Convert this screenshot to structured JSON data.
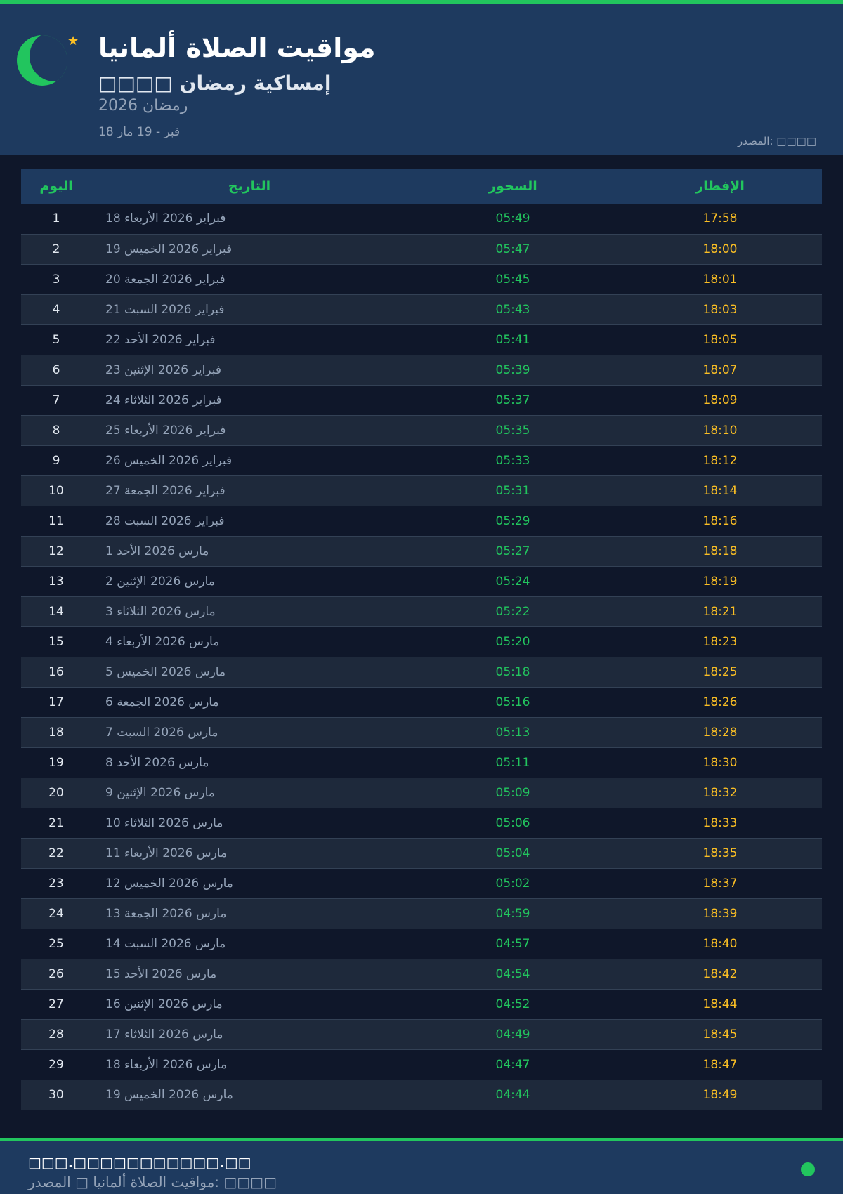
{
  "header": {
    "title": "مواقيت الصلاة ألمانيا",
    "subtitle": "□□□□ إمساكية رمضان",
    "year": "رمضان 2026",
    "range": "18 فبر - 19 مار",
    "source": "المصدر: □□□□"
  },
  "colors": {
    "accent": "#22c55e",
    "iftar": "#fbbf24",
    "header_bg": "#1e3a5f",
    "page_bg": "#0f172a"
  },
  "table": {
    "headers": {
      "day": "اليوم",
      "date": "التاريخ",
      "suhoor": "السحور",
      "iftar": "الإفطار"
    },
    "rows": [
      [
        "1",
        "18 فبراير 2026 الأربعاء",
        "05:49",
        "17:58"
      ],
      [
        "2",
        "19 فبراير 2026 الخميس",
        "05:47",
        "18:00"
      ],
      [
        "3",
        "20 فبراير 2026 الجمعة",
        "05:45",
        "18:01"
      ],
      [
        "4",
        "21 فبراير 2026 السبت",
        "05:43",
        "18:03"
      ],
      [
        "5",
        "22 فبراير 2026 الأحد",
        "05:41",
        "18:05"
      ],
      [
        "6",
        "23 فبراير 2026 الإثنين",
        "05:39",
        "18:07"
      ],
      [
        "7",
        "24 فبراير 2026 الثلاثاء",
        "05:37",
        "18:09"
      ],
      [
        "8",
        "25 فبراير 2026 الأربعاء",
        "05:35",
        "18:10"
      ],
      [
        "9",
        "26 فبراير 2026 الخميس",
        "05:33",
        "18:12"
      ],
      [
        "10",
        "27 فبراير 2026 الجمعة",
        "05:31",
        "18:14"
      ],
      [
        "11",
        "28 فبراير 2026 السبت",
        "05:29",
        "18:16"
      ],
      [
        "12",
        "1 مارس 2026 الأحد",
        "05:27",
        "18:18"
      ],
      [
        "13",
        "2 مارس 2026 الإثنين",
        "05:24",
        "18:19"
      ],
      [
        "14",
        "3 مارس 2026 الثلاثاء",
        "05:22",
        "18:21"
      ],
      [
        "15",
        "4 مارس 2026 الأربعاء",
        "05:20",
        "18:23"
      ],
      [
        "16",
        "5 مارس 2026 الخميس",
        "05:18",
        "18:25"
      ],
      [
        "17",
        "6 مارس 2026 الجمعة",
        "05:16",
        "18:26"
      ],
      [
        "18",
        "7 مارس 2026 السبت",
        "05:13",
        "18:28"
      ],
      [
        "19",
        "8 مارس 2026 الأحد",
        "05:11",
        "18:30"
      ],
      [
        "20",
        "9 مارس 2026 الإثنين",
        "05:09",
        "18:32"
      ],
      [
        "21",
        "10 مارس 2026 الثلاثاء",
        "05:06",
        "18:33"
      ],
      [
        "22",
        "11 مارس 2026 الأربعاء",
        "05:04",
        "18:35"
      ],
      [
        "23",
        "12 مارس 2026 الخميس",
        "05:02",
        "18:37"
      ],
      [
        "24",
        "13 مارس 2026 الجمعة",
        "04:59",
        "18:39"
      ],
      [
        "25",
        "14 مارس 2026 السبت",
        "04:57",
        "18:40"
      ],
      [
        "26",
        "15 مارس 2026 الأحد",
        "04:54",
        "18:42"
      ],
      [
        "27",
        "16 مارس 2026 الإثنين",
        "04:52",
        "18:44"
      ],
      [
        "28",
        "17 مارس 2026 الثلاثاء",
        "04:49",
        "18:45"
      ],
      [
        "29",
        "18 مارس 2026 الأربعاء",
        "04:47",
        "18:47"
      ],
      [
        "30",
        "19 مارس 2026 الخميس",
        "04:44",
        "18:49"
      ]
    ]
  },
  "footer": {
    "url": "□□□.□□□□□□□□□□□.□□",
    "text": "مواقيت الصلاة ألمانيا □ المصدر: □□□□"
  }
}
